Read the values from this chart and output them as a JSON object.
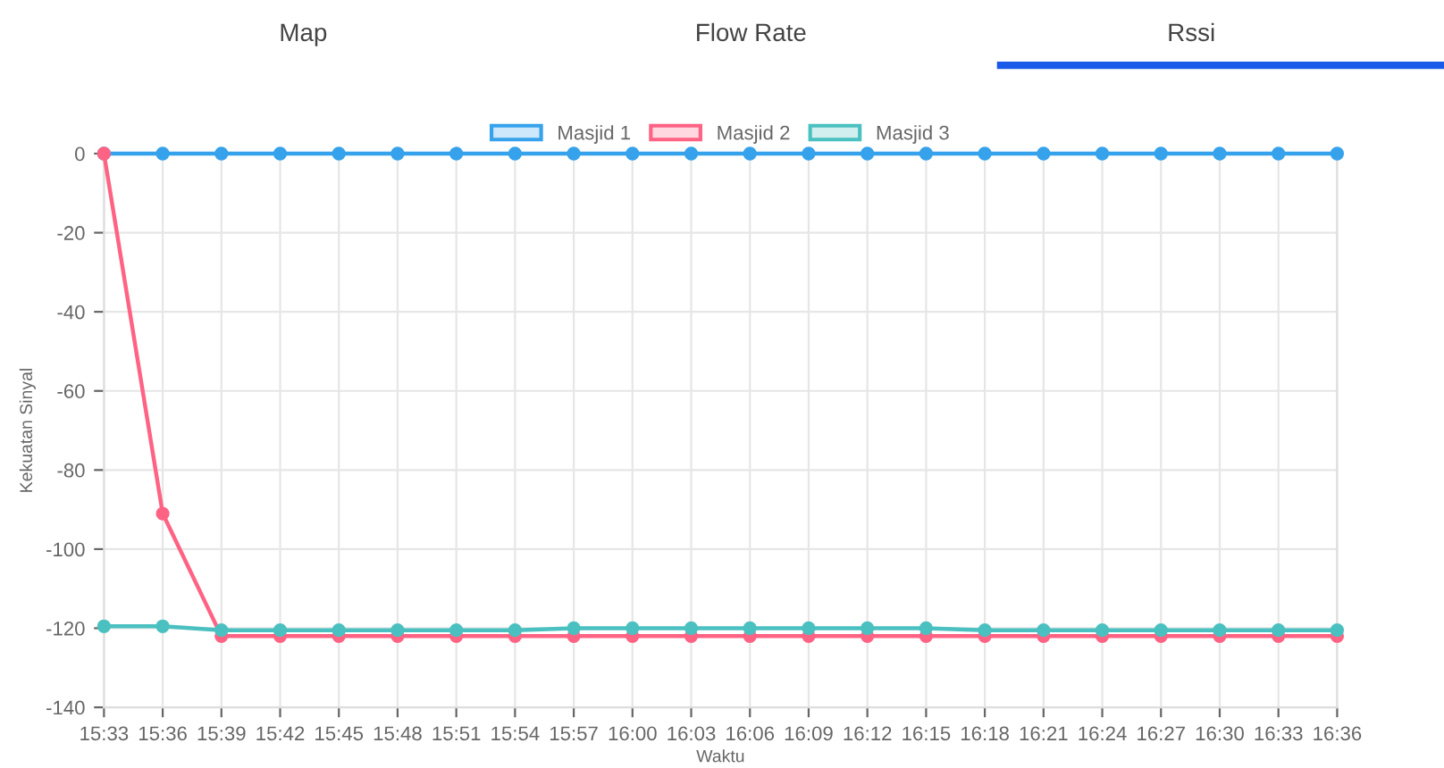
{
  "chart_data": {
    "type": "line",
    "annotations": [
      "Map",
      "Flow Rate",
      "Rssi"
    ],
    "xlabel": "Waktu",
    "ylabel": "Kekuatan Sinyal",
    "categories": [
      "15:33",
      "15:36",
      "15:39",
      "15:42",
      "15:45",
      "15:48",
      "15:51",
      "15:54",
      "15:57",
      "16:00",
      "16:03",
      "16:06",
      "16:09",
      "16:12",
      "16:15",
      "16:18",
      "16:21",
      "16:24",
      "16:27",
      "16:30",
      "16:33",
      "16:36"
    ],
    "series": [
      {
        "name": "Masjid 1",
        "color": "#36a2eb",
        "values": [
          0,
          0,
          0,
          0,
          0,
          0,
          0,
          0,
          0,
          0,
          0,
          0,
          0,
          0,
          0,
          0,
          0,
          0,
          0,
          0,
          0,
          0
        ]
      },
      {
        "name": "Masjid 2",
        "color": "#ff6384",
        "values": [
          0,
          -91,
          -122,
          -122,
          -122,
          -122,
          -122,
          -122,
          -122,
          -122,
          -122,
          -122,
          -122,
          -122,
          -122,
          -122,
          -122,
          -122,
          -122,
          -122,
          -122,
          -122
        ]
      },
      {
        "name": "Masjid 3",
        "color": "#4bc0c0",
        "values": [
          -119.5,
          -119.5,
          -120.5,
          -120.5,
          -120.5,
          -120.5,
          -120.5,
          -120.5,
          -120,
          -120,
          -120,
          -120,
          -120,
          -120,
          -120,
          -120.5,
          -120.5,
          -120.5,
          -120.5,
          -120.5,
          -120.5,
          -120.5
        ]
      }
    ],
    "ylim": [
      -140,
      0
    ],
    "yticks": [
      -140,
      -120,
      -100,
      -80,
      -60,
      -40,
      -20,
      0
    ],
    "grid": true,
    "legend": "top",
    "marker": "circle",
    "line_style": "solid"
  }
}
